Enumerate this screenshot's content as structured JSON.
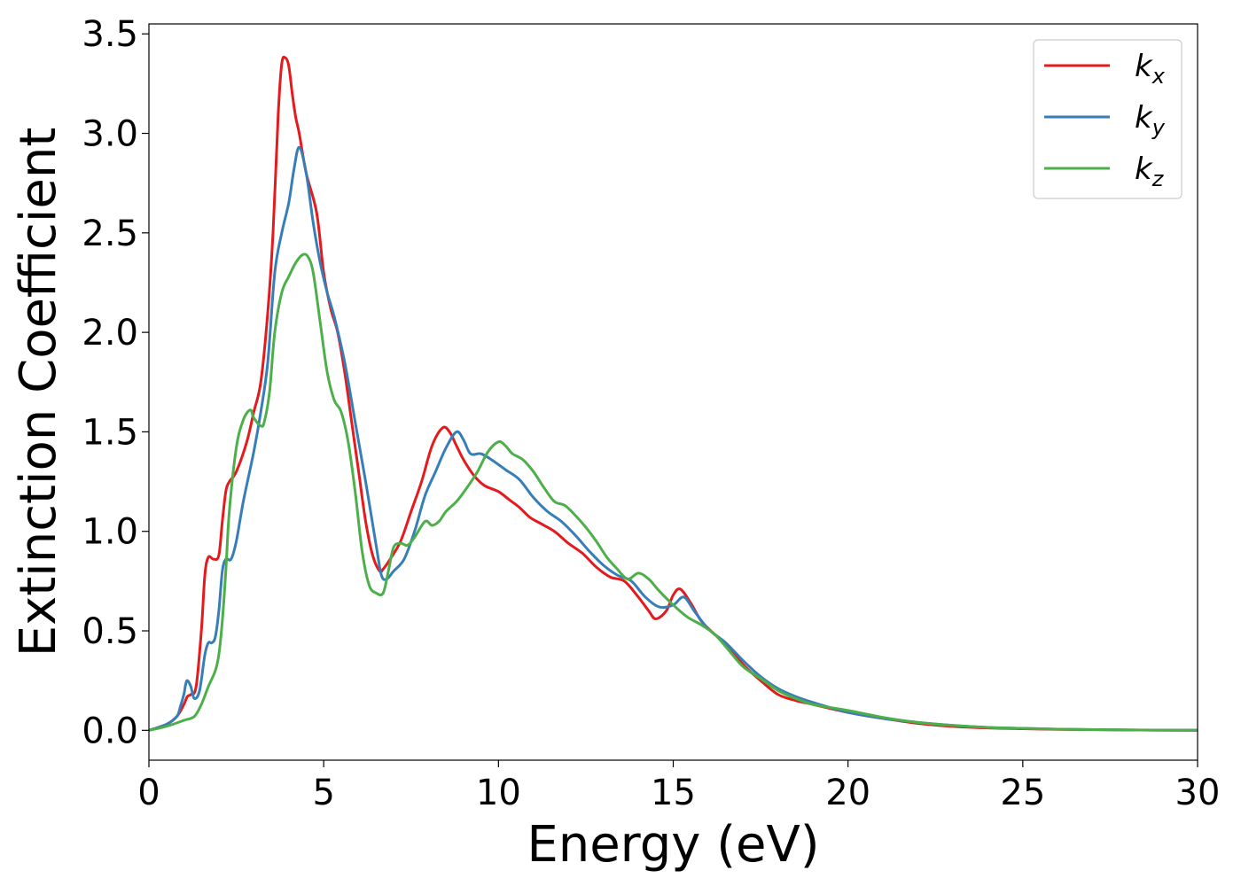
{
  "chart_data": {
    "type": "line",
    "title": "",
    "xlabel": "Energy (eV)",
    "ylabel": "Extinction Coefficient",
    "xlim": [
      0,
      30
    ],
    "ylim": [
      -0.15,
      3.55
    ],
    "xticks": [
      0,
      5,
      10,
      15,
      20,
      25,
      30
    ],
    "yticks": [
      0.0,
      0.5,
      1.0,
      1.5,
      2.0,
      2.5,
      3.0,
      3.5
    ],
    "grid": false,
    "legend_position": "top-right",
    "series": [
      {
        "name": "k_x",
        "legend_main": "k",
        "legend_sub": "x",
        "color": "#e41a1c",
        "x": [
          0,
          0.5,
          0.8,
          1.0,
          1.1,
          1.2,
          1.35,
          1.5,
          1.6,
          1.7,
          1.85,
          2.0,
          2.1,
          2.2,
          2.3,
          2.5,
          2.8,
          3.0,
          3.2,
          3.4,
          3.55,
          3.7,
          3.8,
          3.9,
          4.0,
          4.1,
          4.2,
          4.3,
          4.5,
          4.8,
          5.0,
          5.2,
          5.4,
          5.6,
          5.8,
          6.0,
          6.2,
          6.4,
          6.6,
          6.7,
          6.9,
          7.2,
          7.5,
          7.8,
          8.1,
          8.4,
          8.6,
          8.8,
          9.0,
          9.3,
          9.6,
          10.0,
          10.3,
          10.6,
          10.9,
          11.2,
          11.6,
          12.0,
          12.4,
          12.8,
          13.2,
          13.6,
          14.0,
          14.3,
          14.5,
          14.8,
          15.0,
          15.2,
          15.5,
          15.8,
          16.2,
          16.6,
          17.0,
          17.5,
          18.0,
          18.5,
          19.0,
          20.0,
          21.0,
          22.0,
          23.0,
          24.0,
          25.0,
          26.0,
          28.0,
          30.0
        ],
        "y": [
          0.0,
          0.03,
          0.07,
          0.13,
          0.17,
          0.18,
          0.22,
          0.5,
          0.78,
          0.87,
          0.86,
          0.88,
          1.05,
          1.2,
          1.25,
          1.3,
          1.45,
          1.6,
          1.75,
          2.1,
          2.5,
          3.1,
          3.35,
          3.38,
          3.34,
          3.2,
          3.08,
          3.0,
          2.8,
          2.6,
          2.3,
          2.12,
          2.0,
          1.8,
          1.55,
          1.3,
          1.05,
          0.88,
          0.8,
          0.81,
          0.86,
          0.95,
          1.1,
          1.25,
          1.43,
          1.52,
          1.5,
          1.43,
          1.36,
          1.28,
          1.23,
          1.2,
          1.16,
          1.12,
          1.07,
          1.04,
          1.0,
          0.94,
          0.89,
          0.82,
          0.77,
          0.75,
          0.67,
          0.6,
          0.56,
          0.6,
          0.68,
          0.71,
          0.64,
          0.55,
          0.48,
          0.42,
          0.33,
          0.25,
          0.18,
          0.15,
          0.13,
          0.09,
          0.06,
          0.035,
          0.02,
          0.012,
          0.008,
          0.005,
          0.002,
          0.0
        ]
      },
      {
        "name": "k_y",
        "legend_main": "k",
        "legend_sub": "y",
        "color": "#377eb8",
        "x": [
          0,
          0.5,
          0.8,
          0.9,
          1.0,
          1.05,
          1.1,
          1.2,
          1.3,
          1.45,
          1.6,
          1.7,
          1.8,
          1.9,
          2.0,
          2.1,
          2.2,
          2.35,
          2.5,
          2.7,
          3.0,
          3.2,
          3.4,
          3.6,
          3.8,
          4.0,
          4.15,
          4.3,
          4.5,
          4.7,
          4.9,
          5.1,
          5.3,
          5.6,
          5.9,
          6.2,
          6.5,
          6.65,
          6.8,
          7.0,
          7.3,
          7.6,
          7.9,
          8.2,
          8.5,
          8.8,
          9.0,
          9.2,
          9.5,
          9.8,
          10.2,
          10.6,
          11.0,
          11.4,
          11.8,
          12.2,
          12.6,
          13.0,
          13.4,
          13.8,
          14.2,
          14.6,
          15.0,
          15.3,
          15.6,
          16.0,
          16.5,
          17.0,
          17.5,
          18.0,
          18.5,
          19.0,
          20.0,
          21.0,
          22.0,
          23.0,
          24.0,
          25.0,
          26.0,
          28.0,
          30.0
        ],
        "y": [
          0.0,
          0.03,
          0.07,
          0.12,
          0.18,
          0.23,
          0.25,
          0.22,
          0.16,
          0.2,
          0.38,
          0.44,
          0.44,
          0.47,
          0.6,
          0.8,
          0.86,
          0.86,
          0.95,
          1.15,
          1.4,
          1.6,
          1.85,
          2.3,
          2.5,
          2.65,
          2.82,
          2.93,
          2.8,
          2.55,
          2.35,
          2.2,
          2.08,
          1.85,
          1.55,
          1.25,
          0.93,
          0.78,
          0.76,
          0.8,
          0.86,
          1.0,
          1.18,
          1.3,
          1.42,
          1.5,
          1.46,
          1.39,
          1.39,
          1.36,
          1.31,
          1.26,
          1.17,
          1.1,
          1.05,
          0.98,
          0.9,
          0.83,
          0.78,
          0.75,
          0.67,
          0.62,
          0.63,
          0.67,
          0.6,
          0.51,
          0.44,
          0.35,
          0.27,
          0.21,
          0.17,
          0.14,
          0.09,
          0.06,
          0.04,
          0.025,
          0.015,
          0.01,
          0.006,
          0.002,
          0.0
        ]
      },
      {
        "name": "k_z",
        "legend_main": "k",
        "legend_sub": "z",
        "color": "#4daf4a",
        "x": [
          0,
          0.5,
          1.0,
          1.3,
          1.5,
          1.7,
          1.9,
          2.0,
          2.1,
          2.2,
          2.3,
          2.5,
          2.7,
          2.9,
          3.0,
          3.2,
          3.3,
          3.45,
          3.6,
          3.8,
          4.0,
          4.2,
          4.4,
          4.55,
          4.7,
          4.9,
          5.1,
          5.3,
          5.5,
          5.7,
          5.9,
          6.1,
          6.3,
          6.5,
          6.7,
          6.85,
          7.0,
          7.2,
          7.4,
          7.6,
          7.9,
          8.1,
          8.3,
          8.5,
          8.8,
          9.1,
          9.4,
          9.7,
          10.0,
          10.2,
          10.4,
          10.7,
          11.0,
          11.3,
          11.6,
          11.9,
          12.2,
          12.5,
          12.8,
          13.1,
          13.4,
          13.7,
          14.0,
          14.3,
          14.6,
          15.0,
          15.4,
          15.8,
          16.2,
          16.6,
          17.0,
          17.5,
          18.0,
          18.5,
          19.0,
          20.0,
          21.0,
          22.0,
          23.0,
          24.0,
          25.0,
          26.0,
          28.0,
          30.0
        ],
        "y": [
          0.0,
          0.02,
          0.05,
          0.07,
          0.13,
          0.22,
          0.3,
          0.38,
          0.55,
          0.8,
          1.1,
          1.42,
          1.56,
          1.61,
          1.57,
          1.53,
          1.55,
          1.7,
          2.0,
          2.2,
          2.28,
          2.35,
          2.39,
          2.38,
          2.3,
          2.05,
          1.8,
          1.66,
          1.6,
          1.45,
          1.2,
          0.9,
          0.73,
          0.69,
          0.69,
          0.8,
          0.92,
          0.94,
          0.93,
          0.97,
          1.05,
          1.03,
          1.05,
          1.1,
          1.15,
          1.22,
          1.3,
          1.4,
          1.45,
          1.43,
          1.39,
          1.36,
          1.3,
          1.22,
          1.15,
          1.13,
          1.08,
          1.02,
          0.95,
          0.87,
          0.81,
          0.76,
          0.79,
          0.76,
          0.7,
          0.63,
          0.57,
          0.53,
          0.48,
          0.4,
          0.32,
          0.26,
          0.2,
          0.16,
          0.13,
          0.1,
          0.065,
          0.04,
          0.025,
          0.015,
          0.01,
          0.006,
          0.002,
          0.0
        ]
      }
    ]
  }
}
